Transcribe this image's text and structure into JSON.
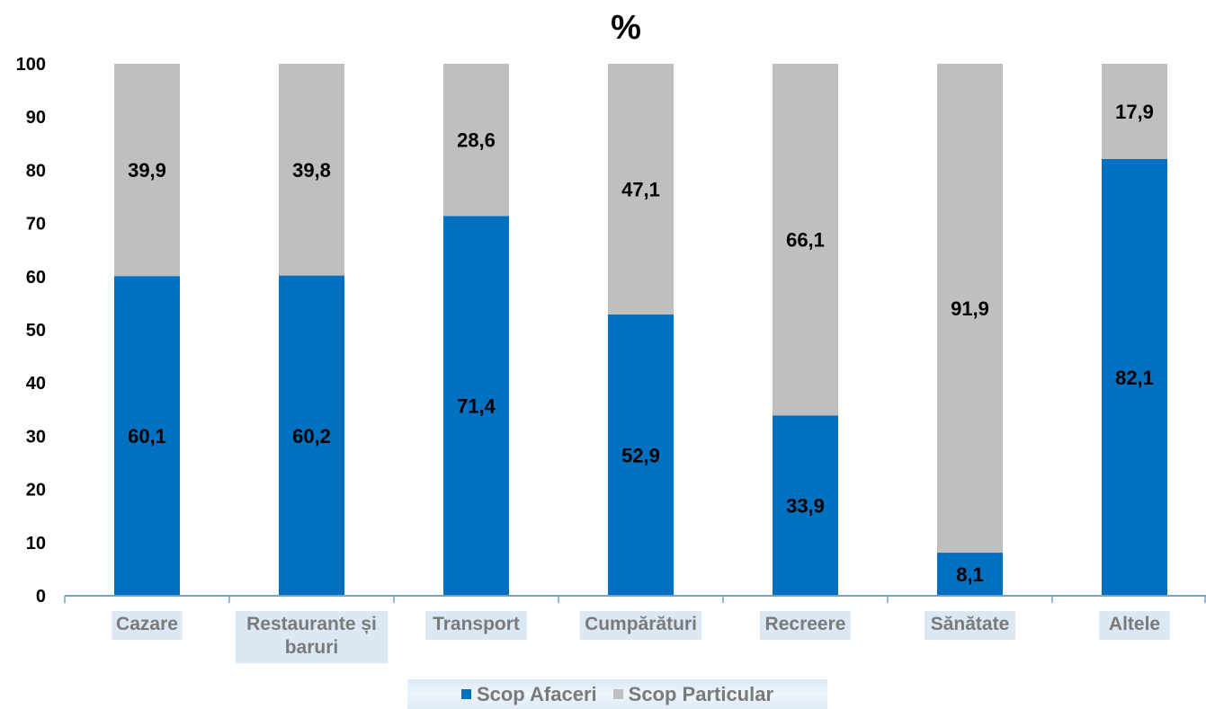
{
  "chart_data": {
    "type": "bar",
    "stacked": true,
    "title": "%",
    "xlabel": "",
    "ylabel": "",
    "ylim": [
      0,
      100
    ],
    "yticks": [
      0,
      10,
      20,
      30,
      40,
      50,
      60,
      70,
      80,
      90,
      100
    ],
    "grid": false,
    "legend_position": "bottom",
    "categories": [
      "Cazare",
      "Restaurante și baruri",
      "Transport",
      "Cumpărături",
      "Recreere",
      "Sănătate",
      "Altele"
    ],
    "series": [
      {
        "name": "Scop Afaceri",
        "color": "#0070c0",
        "values": [
          60.1,
          60.2,
          71.4,
          52.9,
          33.9,
          8.1,
          82.1
        ],
        "labels": [
          "60,1",
          "60,2",
          "71,4",
          "52,9",
          "33,9",
          "8,1",
          "82,1"
        ]
      },
      {
        "name": "Scop Particular",
        "color": "#bfbfbf",
        "values": [
          39.9,
          39.8,
          28.6,
          47.1,
          66.1,
          91.9,
          17.9
        ],
        "labels": [
          "39,9",
          "39,8",
          "28,6",
          "47,1",
          "66,1",
          "91,9",
          "17,9"
        ]
      }
    ]
  },
  "colors": {
    "axis": "#6fa3c8",
    "category_label": "#7a7a7a",
    "category_label_bg": "#dce9f5",
    "tick_label": "#000000",
    "data_label": "#000000"
  }
}
